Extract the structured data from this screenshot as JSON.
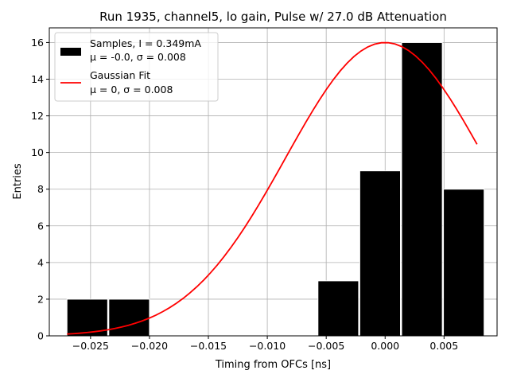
{
  "chart_data": {
    "type": "bar",
    "title": "Run 1935, channel5, lo gain, Pulse w/ 27.0 dB Attenuation",
    "xlabel": "Timing from OFCs [ns]",
    "ylabel": "Entries",
    "xlim": [
      -0.0285,
      0.0095
    ],
    "ylim": [
      0,
      16.8
    ],
    "grid": true,
    "legend_position": "top-left",
    "x_ticks": [
      -0.025,
      -0.02,
      -0.015,
      -0.01,
      -0.005,
      0.0,
      0.005
    ],
    "x_tick_labels": [
      "−0.025",
      "−0.020",
      "−0.015",
      "−0.010",
      "−0.005",
      "0.000",
      "0.005"
    ],
    "y_ticks": [
      0,
      2,
      4,
      6,
      8,
      10,
      12,
      14,
      16
    ],
    "y_tick_labels": [
      "0",
      "2",
      "4",
      "6",
      "8",
      "10",
      "12",
      "14",
      "16"
    ],
    "series": [
      {
        "name": "Samples",
        "kind": "histogram",
        "color": "#000000",
        "edge_color": "#ffffff",
        "bin_edges": [
          -0.027,
          -0.02345,
          -0.0199,
          -0.01635,
          -0.0128,
          -0.00925,
          -0.0057,
          -0.00215,
          0.0014,
          0.00495,
          0.0085
        ],
        "counts": [
          2,
          2,
          0,
          0,
          0,
          0,
          3,
          9,
          16,
          8
        ],
        "bar_width": 0.00345,
        "legend_lines": [
          "Samples, I = 0.349mA",
          "μ = -0.0, σ = 0.008"
        ]
      },
      {
        "name": "Gaussian Fit",
        "kind": "line",
        "color": "#ff0000",
        "amplitude": 16.0,
        "mu": 0.0,
        "sigma": 0.00845,
        "x_range": [
          -0.027,
          0.0078
        ],
        "legend_lines": [
          "Gaussian Fit",
          "μ = 0, σ = 0.008"
        ]
      }
    ]
  }
}
